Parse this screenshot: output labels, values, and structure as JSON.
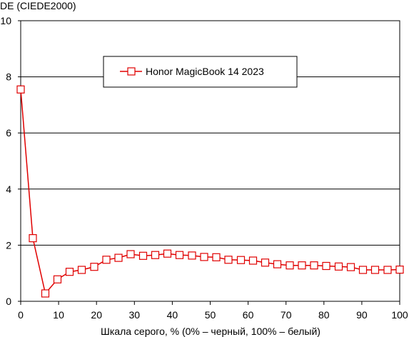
{
  "chart_data": {
    "type": "line",
    "title": "",
    "ylabel": "DE (CIEDE2000)",
    "xlabel": "Шкала серого, % (0% – черный, 100% – белый)",
    "xlim": [
      0,
      100
    ],
    "ylim": [
      0,
      10
    ],
    "xticks": [
      0,
      10,
      20,
      30,
      40,
      50,
      60,
      70,
      80,
      90,
      100
    ],
    "yticks": [
      0,
      2,
      4,
      6,
      8,
      10
    ],
    "grid": "horizontal",
    "legend_position": "top-center",
    "series": [
      {
        "name": "Honor MagicBook 14 2023",
        "color": "#e00000",
        "marker": "open-square",
        "x": [
          0,
          3.2,
          6.5,
          9.7,
          12.9,
          16.1,
          19.4,
          22.6,
          25.8,
          29.0,
          32.3,
          35.5,
          38.7,
          41.9,
          45.2,
          48.4,
          51.6,
          54.8,
          58.1,
          61.3,
          64.5,
          67.7,
          71.0,
          74.2,
          77.4,
          80.6,
          83.9,
          87.1,
          90.3,
          93.5,
          96.8,
          100
        ],
        "y": [
          7.55,
          2.25,
          0.28,
          0.78,
          1.05,
          1.12,
          1.23,
          1.48,
          1.55,
          1.68,
          1.62,
          1.65,
          1.7,
          1.65,
          1.63,
          1.58,
          1.57,
          1.48,
          1.47,
          1.45,
          1.38,
          1.32,
          1.28,
          1.28,
          1.28,
          1.26,
          1.24,
          1.22,
          1.12,
          1.12,
          1.12,
          1.13
        ]
      }
    ]
  }
}
